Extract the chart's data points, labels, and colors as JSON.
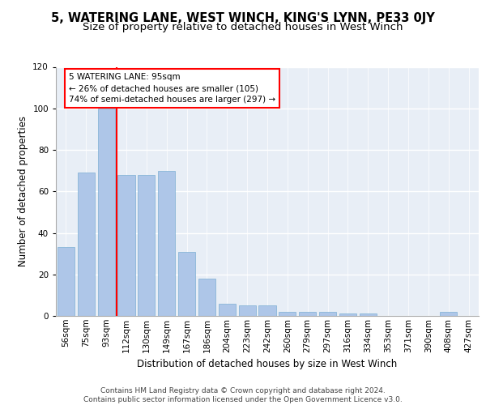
{
  "title": "5, WATERING LANE, WEST WINCH, KING'S LYNN, PE33 0JY",
  "subtitle": "Size of property relative to detached houses in West Winch",
  "xlabel": "Distribution of detached houses by size in West Winch",
  "ylabel": "Number of detached properties",
  "categories": [
    "56sqm",
    "75sqm",
    "93sqm",
    "112sqm",
    "130sqm",
    "149sqm",
    "167sqm",
    "186sqm",
    "204sqm",
    "223sqm",
    "242sqm",
    "260sqm",
    "279sqm",
    "297sqm",
    "316sqm",
    "334sqm",
    "353sqm",
    "371sqm",
    "390sqm",
    "408sqm",
    "427sqm"
  ],
  "values": [
    33,
    69,
    100,
    68,
    68,
    70,
    31,
    18,
    6,
    5,
    5,
    2,
    2,
    2,
    1,
    1,
    0,
    0,
    0,
    2,
    0
  ],
  "bar_color": "#aec6e8",
  "bar_edge_color": "#7bafd4",
  "annotation_text_line1": "5 WATERING LANE: 95sqm",
  "annotation_text_line2": "← 26% of detached houses are smaller (105)",
  "annotation_text_line3": "74% of semi-detached houses are larger (297) →",
  "annotation_box_color": "white",
  "annotation_box_edge_color": "red",
  "vline_color": "red",
  "footer_line1": "Contains HM Land Registry data © Crown copyright and database right 2024.",
  "footer_line2": "Contains public sector information licensed under the Open Government Licence v3.0.",
  "ylim": [
    0,
    120
  ],
  "background_color": "#e8eef6",
  "grid_color": "white",
  "title_fontsize": 10.5,
  "subtitle_fontsize": 9.5,
  "axis_label_fontsize": 8.5,
  "tick_fontsize": 7.5,
  "footer_fontsize": 6.5,
  "vline_x_index": 2.5
}
